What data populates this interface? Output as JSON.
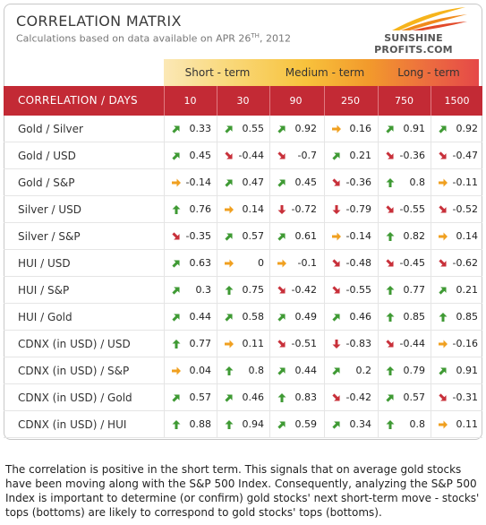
{
  "header": {
    "title": "CORRELATION MATRIX",
    "subtitle_prefix": "Calculations based on data available on  APR 26",
    "subtitle_sup": "TH",
    "subtitle_suffix": ", 2012",
    "logo_text": "SUNSHINE PROFITS.COM"
  },
  "terms": {
    "short": "Short - term",
    "medium": "Medium - term",
    "long": "Long - term"
  },
  "chart_data": {
    "type": "table",
    "title": "CORRELATION MATRIX",
    "corner_label": "CORRELATION / DAYS",
    "columns": [
      "10",
      "30",
      "90",
      "250",
      "750",
      "1500"
    ],
    "rows": [
      {
        "label": "Gold / Silver",
        "values": [
          0.33,
          0.55,
          0.92,
          0.16,
          0.91,
          0.92
        ],
        "arrows": [
          "up-right",
          "up-right",
          "up-right",
          "right",
          "up-right",
          "up-right"
        ]
      },
      {
        "label": "Gold / USD",
        "values": [
          0.45,
          -0.44,
          -0.7,
          0.21,
          -0.36,
          -0.47
        ],
        "arrows": [
          "up-right",
          "down-right",
          "down-right",
          "up-right",
          "down-right",
          "down-right"
        ]
      },
      {
        "label": "Gold / S&P",
        "values": [
          -0.14,
          0.47,
          0.45,
          -0.36,
          0.8,
          -0.11
        ],
        "arrows": [
          "right",
          "up-right",
          "up-right",
          "down-right",
          "up",
          "right"
        ]
      },
      {
        "label": "Silver / USD",
        "values": [
          0.76,
          0.14,
          -0.72,
          -0.79,
          -0.55,
          -0.52
        ],
        "arrows": [
          "up",
          "right",
          "down",
          "down",
          "down-right",
          "down-right"
        ]
      },
      {
        "label": "Silver / S&P",
        "values": [
          -0.35,
          0.57,
          0.61,
          -0.14,
          0.82,
          0.14
        ],
        "arrows": [
          "down-right",
          "up-right",
          "up-right",
          "right",
          "up",
          "right"
        ]
      },
      {
        "label": "HUI / USD",
        "values": [
          0.63,
          0,
          -0.1,
          -0.48,
          -0.45,
          -0.62
        ],
        "arrows": [
          "up-right",
          "right",
          "right",
          "down-right",
          "down-right",
          "down-right"
        ]
      },
      {
        "label": "HUI / S&P",
        "values": [
          0.3,
          0.75,
          -0.42,
          -0.55,
          0.77,
          0.21
        ],
        "arrows": [
          "up-right",
          "up",
          "down-right",
          "down-right",
          "up",
          "up-right"
        ]
      },
      {
        "label": "HUI / Gold",
        "values": [
          0.44,
          0.58,
          0.49,
          0.46,
          0.85,
          0.85
        ],
        "arrows": [
          "up-right",
          "up-right",
          "up-right",
          "up-right",
          "up",
          "up"
        ]
      },
      {
        "label": "CDNX (in USD) / USD",
        "values": [
          0.77,
          0.11,
          -0.51,
          -0.83,
          -0.44,
          -0.16
        ],
        "arrows": [
          "up",
          "right",
          "down-right",
          "down",
          "down-right",
          "right"
        ]
      },
      {
        "label": "CDNX (in USD) / S&P",
        "values": [
          0.04,
          0.8,
          0.44,
          0.2,
          0.79,
          0.91
        ],
        "arrows": [
          "right",
          "up",
          "up-right",
          "up-right",
          "up",
          "up-right"
        ]
      },
      {
        "label": "CDNX (in USD) / Gold",
        "values": [
          0.57,
          0.46,
          0.83,
          -0.42,
          0.57,
          -0.31
        ],
        "arrows": [
          "up-right",
          "up-right",
          "up",
          "down-right",
          "up-right",
          "down-right"
        ]
      },
      {
        "label": "CDNX (in USD) / HUI",
        "values": [
          0.88,
          0.94,
          0.59,
          0.34,
          0.8,
          0.11
        ],
        "arrows": [
          "up",
          "up",
          "up-right",
          "up-right",
          "up",
          "right"
        ]
      }
    ]
  },
  "colors": {
    "header_red": "#c32a35",
    "arrow_green": "#3f9a34",
    "arrow_red": "#c8303a",
    "arrow_orange": "#f0a020"
  },
  "footer": {
    "text": "The correlation is positive in the short term. This signals that on average gold stocks have been moving along with the S&P 500 Index. Consequently, analyzing the S&P 500 Index is important to determine (or confirm) gold stocks' next short-term move - stocks' tops (bottoms) are likely to correspond to gold stocks' tops (bottoms)."
  }
}
